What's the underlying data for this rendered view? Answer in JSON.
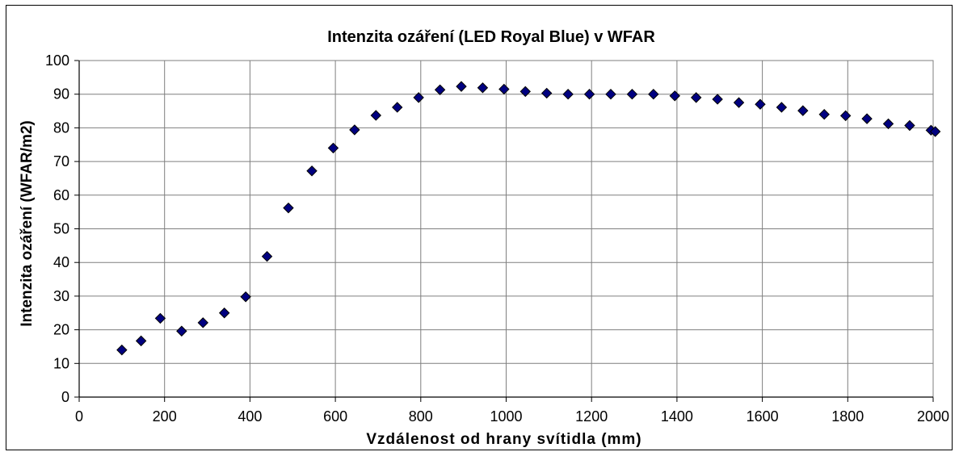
{
  "chart_data": {
    "type": "scatter",
    "title": "Intenzita ozáření (LED Royal Blue) v WFAR",
    "xlabel": "Vzdálenost od hrany svítidla (mm)",
    "ylabel": "Intenzita ozáření (WFAR/m2)",
    "xlim": [
      0,
      2000
    ],
    "ylim": [
      0,
      100
    ],
    "x_ticks": [
      0,
      200,
      400,
      600,
      800,
      1000,
      1200,
      1400,
      1600,
      1800,
      2000
    ],
    "y_ticks": [
      0,
      10,
      20,
      30,
      40,
      50,
      60,
      70,
      80,
      90,
      100
    ],
    "grid": true,
    "marker": "diamond",
    "marker_color": "#000080",
    "x": [
      100,
      145,
      190,
      240,
      290,
      340,
      390,
      440,
      490,
      545,
      595,
      645,
      695,
      745,
      795,
      845,
      895,
      945,
      995,
      1045,
      1095,
      1145,
      1195,
      1245,
      1295,
      1345,
      1395,
      1445,
      1495,
      1545,
      1595,
      1645,
      1695,
      1745,
      1795,
      1845,
      1895,
      1945,
      1995,
      2005
    ],
    "y": [
      14,
      16.7,
      23.4,
      19.6,
      22.1,
      25,
      29.8,
      41.8,
      56.2,
      67.2,
      74,
      79.4,
      83.7,
      86.1,
      89,
      91.3,
      92.3,
      91.9,
      91.5,
      90.8,
      90.3,
      90,
      90,
      90,
      90,
      90,
      89.5,
      89,
      88.5,
      87.5,
      87,
      86.1,
      85.1,
      84,
      83.6,
      82.7,
      81.2,
      80.7,
      79.3,
      78.9
    ]
  }
}
